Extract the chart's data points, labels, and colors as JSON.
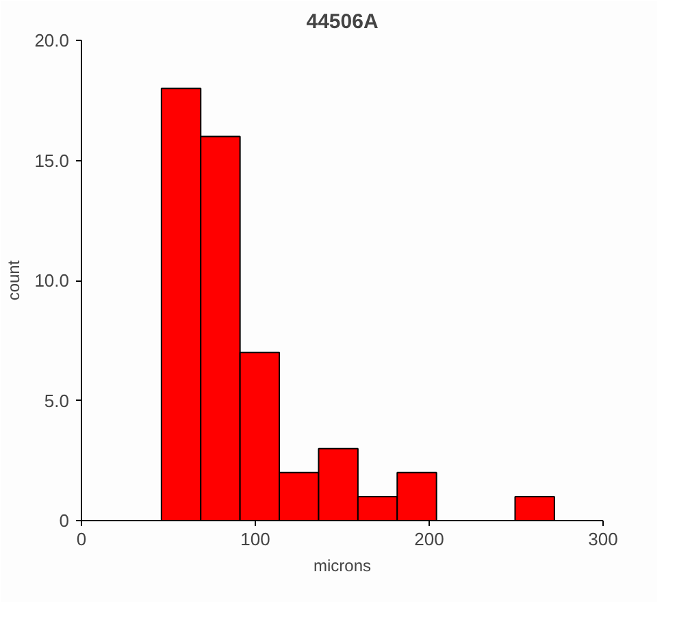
{
  "chart_data": {
    "type": "histogram",
    "title": "44506A",
    "xlabel": "microns",
    "ylabel": "count",
    "bins": [
      46,
      68.6,
      91.2,
      113.8,
      136.4,
      159,
      181.6,
      204.2,
      226.8,
      249.4,
      272
    ],
    "values": [
      18,
      16,
      7,
      2,
      3,
      1,
      2,
      0,
      0,
      1
    ],
    "color": "#ff0000",
    "xlim": [
      0,
      300
    ],
    "xticks": [
      0,
      100,
      200,
      300
    ],
    "ylim": [
      0,
      20
    ],
    "yticks": [
      {
        "value": 0,
        "label": "0"
      },
      {
        "value": 5,
        "label": "5.0"
      },
      {
        "value": 10,
        "label": "10.0"
      },
      {
        "value": 15,
        "label": "15.0"
      },
      {
        "value": 20,
        "label": "20.0"
      }
    ],
    "grid": false
  }
}
